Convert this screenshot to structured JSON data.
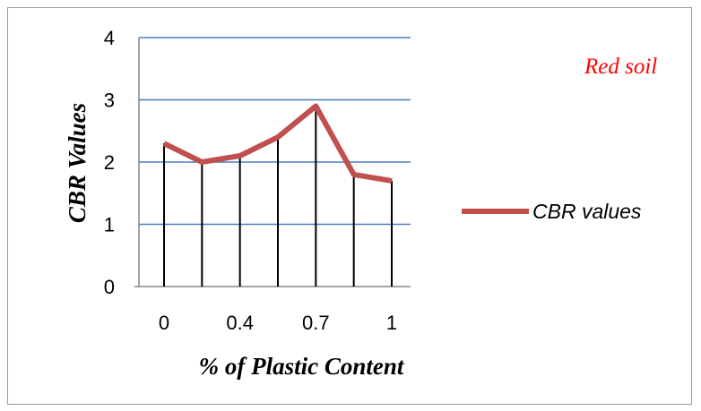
{
  "chart_data": {
    "type": "line",
    "title": "",
    "xlabel": "% of Plastic Content",
    "ylabel": "CBR Values",
    "ylim": [
      0,
      4
    ],
    "yticks": [
      "0",
      "1",
      "2",
      "3",
      "4"
    ],
    "x_tick_labels": [
      "0",
      "0.4",
      "0.7",
      "1"
    ],
    "grid": true,
    "legend": "right",
    "series": [
      {
        "name": "CBR values",
        "color": "#c0504d",
        "values": [
          2.3,
          2.0,
          2.1,
          2.4,
          2.9,
          1.8,
          1.7
        ]
      }
    ],
    "drop_lines": true,
    "annotation": {
      "text": "Red soil",
      "color": "#ff0000"
    }
  }
}
